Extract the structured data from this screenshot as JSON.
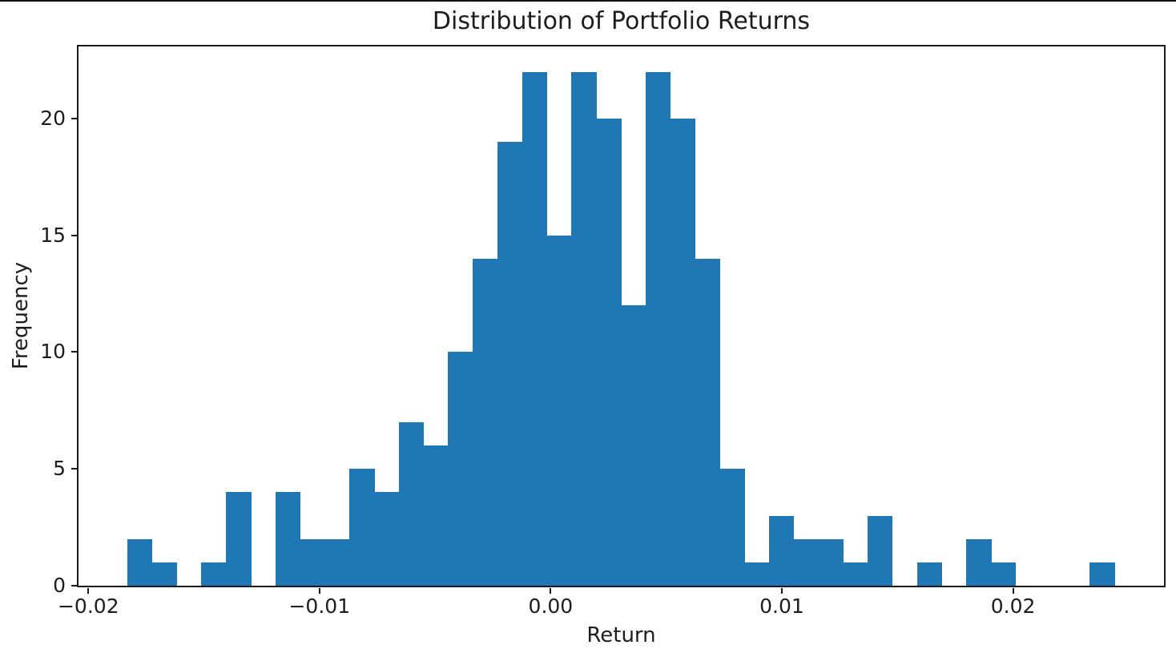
{
  "page": {
    "background_color": "#ffffff",
    "top_edge_line_color": "#111111"
  },
  "chart_data": {
    "type": "bar",
    "subtype": "histogram",
    "title": "Distribution of Portfolio Returns",
    "xlabel": "Return",
    "ylabel": "Frequency",
    "bar_color": "#1f77b4",
    "axis_color": "#1a1a1a",
    "text_color": "#1d1d1d",
    "grid": false,
    "legend": null,
    "bin_start": -0.018315,
    "bin_width": 0.0010675,
    "counts": [
      2,
      1,
      0,
      1,
      4,
      0,
      4,
      2,
      2,
      5,
      4,
      7,
      6,
      10,
      14,
      19,
      22,
      15,
      22,
      20,
      12,
      22,
      20,
      14,
      5,
      1,
      3,
      2,
      2,
      1,
      3,
      0,
      1,
      0,
      2,
      1,
      0,
      0,
      0,
      1
    ],
    "xlim": [
      -0.020425,
      0.02653
    ],
    "ylim": [
      0,
      23.08
    ],
    "x_ticks": [
      {
        "value": -0.02,
        "label": "−0.02"
      },
      {
        "value": -0.01,
        "label": "−0.01"
      },
      {
        "value": 0.0,
        "label": "0.00"
      },
      {
        "value": 0.01,
        "label": "0.01"
      },
      {
        "value": 0.02,
        "label": "0.02"
      }
    ],
    "y_ticks": [
      {
        "value": 0,
        "label": "0"
      },
      {
        "value": 5,
        "label": "5"
      },
      {
        "value": 10,
        "label": "10"
      },
      {
        "value": 15,
        "label": "15"
      },
      {
        "value": 20,
        "label": "20"
      }
    ]
  }
}
